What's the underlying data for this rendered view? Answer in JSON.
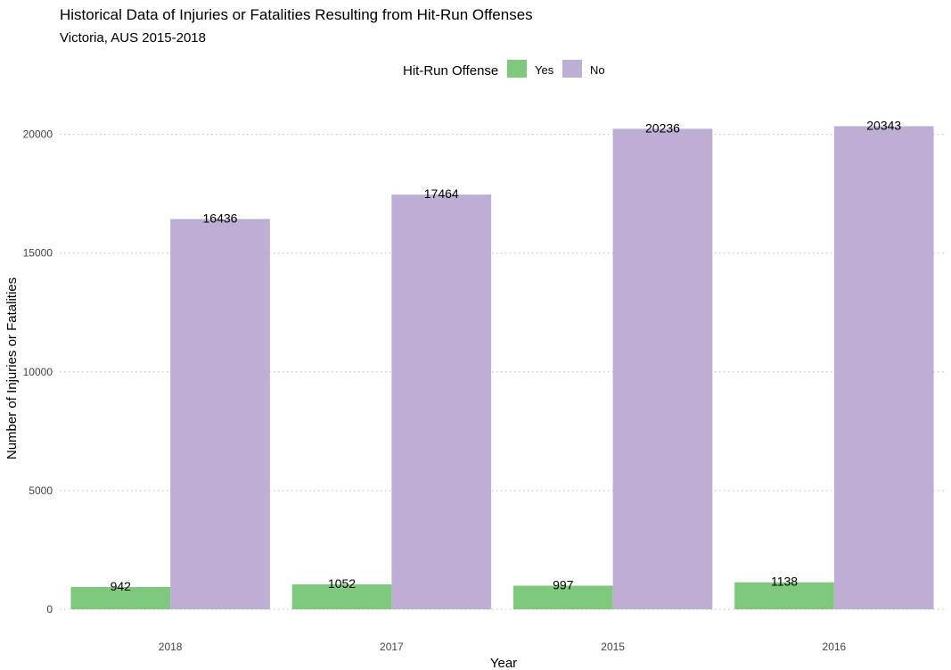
{
  "chart_data": {
    "type": "bar",
    "title": "Historical Data of Injuries or Fatalities Resulting from Hit-Run Offenses",
    "subtitle": "Victoria, AUS 2015-2018",
    "xlabel": "Year",
    "ylabel": "Number of Injuries or Fatalities",
    "categories": [
      "2018",
      "2017",
      "2015",
      "2016"
    ],
    "legend": {
      "title": "Hit-Run Offense",
      "placement": "top-center"
    },
    "series": [
      {
        "name": "Yes",
        "color": "#7fc97f",
        "values": [
          942,
          1052,
          997,
          1138
        ]
      },
      {
        "name": "No",
        "color": "#beaed4",
        "values": [
          16436,
          17464,
          20236,
          20343
        ]
      }
    ],
    "ylim": [
      0,
      21300
    ],
    "yticks": [
      0,
      5000,
      10000,
      15000,
      20000
    ],
    "grid": true
  }
}
